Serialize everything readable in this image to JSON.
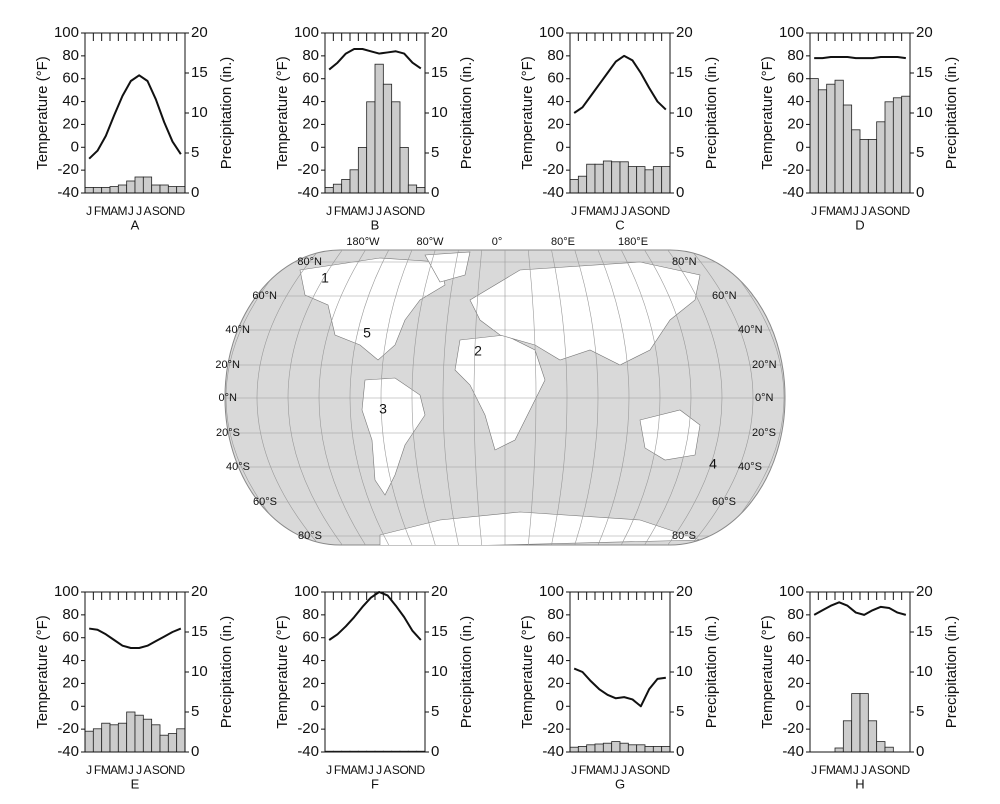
{
  "chart_data": [
    {
      "type": "climograph",
      "label": "A",
      "ylabel": "Temperature (°F)",
      "y2label": "Precipitation (in.)",
      "categories": [
        "J",
        "F",
        "M",
        "A",
        "M",
        "J",
        "J",
        "A",
        "S",
        "O",
        "N",
        "D"
      ],
      "series": [
        {
          "name": "Temperature",
          "kind": "line",
          "color": "#111111",
          "values": [
            -10,
            -3,
            10,
            28,
            45,
            58,
            63,
            58,
            42,
            22,
            5,
            -6
          ]
        },
        {
          "name": "Precipitation",
          "kind": "bar",
          "axis": "y2",
          "color": "#cccccc",
          "values": [
            0.7,
            0.7,
            0.7,
            0.8,
            1,
            1.5,
            2,
            2,
            1,
            1,
            0.8,
            0.8
          ]
        }
      ],
      "ylim": [
        -40,
        100
      ],
      "yticks": [
        -40,
        -20,
        0,
        20,
        40,
        60,
        80,
        100
      ],
      "y2lim": [
        0,
        20
      ],
      "y2ticks": [
        0,
        5,
        10,
        15,
        20
      ]
    },
    {
      "type": "climograph",
      "label": "B",
      "ylabel": "Temperature (°F)",
      "y2label": "Precipitation (in.)",
      "categories": [
        "J",
        "F",
        "M",
        "A",
        "M",
        "J",
        "J",
        "A",
        "S",
        "O",
        "N",
        "D"
      ],
      "series": [
        {
          "name": "Temperature",
          "kind": "line",
          "color": "#111111",
          "values": [
            68,
            74,
            82,
            86,
            86,
            84,
            82,
            83,
            84,
            82,
            74,
            69
          ]
        },
        {
          "name": "Precipitation",
          "kind": "bar",
          "axis": "y2",
          "color": "#cccccc",
          "values": [
            0.7,
            1.1,
            1.7,
            2.9,
            5.7,
            11.4,
            16.1,
            13.6,
            11.4,
            5.7,
            1,
            0.7
          ]
        }
      ],
      "ylim": [
        -40,
        100
      ],
      "yticks": [
        -40,
        -20,
        0,
        20,
        40,
        60,
        80,
        100
      ],
      "y2lim": [
        0,
        20
      ],
      "y2ticks": [
        0,
        5,
        10,
        15,
        20
      ]
    },
    {
      "type": "climograph",
      "label": "C",
      "ylabel": "Temperature (°F)",
      "y2label": "Precipitation (in.)",
      "categories": [
        "J",
        "F",
        "M",
        "A",
        "M",
        "J",
        "J",
        "A",
        "S",
        "O",
        "N",
        "D"
      ],
      "series": [
        {
          "name": "Temperature",
          "kind": "line",
          "color": "#111111",
          "values": [
            30,
            35,
            45,
            55,
            65,
            75,
            80,
            76,
            65,
            52,
            40,
            33
          ]
        },
        {
          "name": "Precipitation",
          "kind": "bar",
          "axis": "y2",
          "color": "#cccccc",
          "values": [
            1.7,
            2.1,
            3.6,
            3.6,
            4,
            3.9,
            3.9,
            3.3,
            3.3,
            2.9,
            3.3,
            3.3
          ]
        }
      ],
      "ylim": [
        -40,
        100
      ],
      "yticks": [
        -40,
        -20,
        0,
        20,
        40,
        60,
        80,
        100
      ],
      "y2lim": [
        0,
        20
      ],
      "y2ticks": [
        0,
        5,
        10,
        15,
        20
      ]
    },
    {
      "type": "climograph",
      "label": "D",
      "ylabel": "Temperature (°F)",
      "y2label": "Precipitation (in.)",
      "categories": [
        "J",
        "F",
        "M",
        "A",
        "M",
        "J",
        "J",
        "A",
        "S",
        "O",
        "N",
        "D"
      ],
      "series": [
        {
          "name": "Temperature",
          "kind": "line",
          "color": "#111111",
          "values": [
            78,
            78,
            79,
            79,
            79,
            78,
            78,
            78,
            79,
            79,
            79,
            78
          ]
        },
        {
          "name": "Precipitation",
          "kind": "bar",
          "axis": "y2",
          "color": "#cccccc",
          "values": [
            14.3,
            12.9,
            13.6,
            14.1,
            11,
            7.9,
            6.7,
            6.7,
            8.9,
            11.4,
            11.9,
            12.1
          ]
        }
      ],
      "ylim": [
        -40,
        100
      ],
      "yticks": [
        -40,
        -20,
        0,
        20,
        40,
        60,
        80,
        100
      ],
      "y2lim": [
        0,
        20
      ],
      "y2ticks": [
        0,
        5,
        10,
        15,
        20
      ]
    },
    {
      "type": "climograph",
      "label": "E",
      "ylabel": "Temperature (°F)",
      "y2label": "Precipitation (in.)",
      "categories": [
        "J",
        "F",
        "M",
        "A",
        "M",
        "J",
        "J",
        "A",
        "S",
        "O",
        "N",
        "D"
      ],
      "series": [
        {
          "name": "Temperature",
          "kind": "line",
          "color": "#111111",
          "values": [
            68,
            67,
            63,
            58,
            53,
            51,
            51,
            53,
            57,
            61,
            65,
            68
          ]
        },
        {
          "name": "Precipitation",
          "kind": "bar",
          "axis": "y2",
          "color": "#cccccc",
          "values": [
            2.6,
            2.9,
            3.6,
            3.4,
            3.6,
            5,
            4.6,
            4.1,
            3.4,
            2.1,
            2.3,
            2.9
          ]
        }
      ],
      "ylim": [
        -40,
        100
      ],
      "yticks": [
        -40,
        -20,
        0,
        20,
        40,
        60,
        80,
        100
      ],
      "y2lim": [
        0,
        20
      ],
      "y2ticks": [
        0,
        5,
        10,
        15,
        20
      ]
    },
    {
      "type": "climograph",
      "label": "F",
      "ylabel": "Temperature (°F)",
      "y2label": "Precipitation (in.)",
      "categories": [
        "J",
        "F",
        "M",
        "A",
        "M",
        "J",
        "J",
        "A",
        "S",
        "O",
        "N",
        "D"
      ],
      "series": [
        {
          "name": "Temperature",
          "kind": "line",
          "color": "#111111",
          "values": [
            58,
            63,
            70,
            78,
            87,
            95,
            100,
            97,
            88,
            78,
            66,
            58
          ]
        },
        {
          "name": "Precipitation",
          "kind": "bar",
          "axis": "y2",
          "color": "#cccccc",
          "values": [
            0.1,
            0.1,
            0.1,
            0.1,
            0.1,
            0.1,
            0.1,
            0.1,
            0.1,
            0.1,
            0.1,
            0.1
          ]
        }
      ],
      "ylim": [
        -40,
        100
      ],
      "yticks": [
        -40,
        -20,
        0,
        20,
        40,
        60,
        80,
        100
      ],
      "y2lim": [
        0,
        20
      ],
      "y2ticks": [
        0,
        5,
        10,
        15,
        20
      ]
    },
    {
      "type": "climograph",
      "label": "G",
      "ylabel": "Temperature (°F)",
      "y2label": "Precipitation (in.)",
      "categories": [
        "J",
        "F",
        "M",
        "A",
        "M",
        "J",
        "J",
        "A",
        "S",
        "O",
        "N",
        "D"
      ],
      "series": [
        {
          "name": "Temperature",
          "kind": "line",
          "color": "#111111",
          "values": [
            33,
            30,
            22,
            15,
            10,
            7,
            8,
            6,
            0,
            15,
            24,
            25
          ]
        },
        {
          "name": "Precipitation",
          "kind": "bar",
          "axis": "y2",
          "color": "#cccccc",
          "values": [
            0.6,
            0.7,
            0.9,
            1,
            1.1,
            1.3,
            1.1,
            0.9,
            0.9,
            0.7,
            0.7,
            0.7
          ]
        }
      ],
      "ylim": [
        -40,
        100
      ],
      "yticks": [
        -40,
        -20,
        0,
        20,
        40,
        60,
        80,
        100
      ],
      "y2lim": [
        0,
        20
      ],
      "y2ticks": [
        0,
        5,
        10,
        15,
        20
      ]
    },
    {
      "type": "climograph",
      "label": "H",
      "ylabel": "Temperature (°F)",
      "y2label": "Precipitation (in.)",
      "categories": [
        "J",
        "F",
        "M",
        "A",
        "M",
        "J",
        "J",
        "A",
        "S",
        "O",
        "N",
        "D"
      ],
      "series": [
        {
          "name": "Temperature",
          "kind": "line",
          "color": "#111111",
          "values": [
            80,
            84,
            88,
            91,
            88,
            82,
            80,
            84,
            87,
            86,
            82,
            80
          ]
        },
        {
          "name": "Precipitation",
          "kind": "bar",
          "axis": "y2",
          "color": "#cccccc",
          "values": [
            0,
            0,
            0,
            0.5,
            3.9,
            7.3,
            7.3,
            3.9,
            1.3,
            0.6,
            0,
            0
          ]
        }
      ],
      "ylim": [
        -40,
        100
      ],
      "yticks": [
        -40,
        -20,
        0,
        20,
        40,
        60,
        80,
        100
      ],
      "y2lim": [
        0,
        20
      ],
      "y2ticks": [
        0,
        5,
        10,
        15,
        20
      ]
    }
  ],
  "map": {
    "longitudes": [
      "180°W",
      "80°W",
      "0°",
      "80°E",
      "180°E"
    ],
    "latitudes_left": [
      "80°N",
      "60°N",
      "40°N",
      "20°N",
      "0°N",
      "20°S",
      "40°S",
      "60°S",
      "80°S"
    ],
    "latitudes_right": [
      "80°N",
      "60°N",
      "40°N",
      "20°N",
      "0°N",
      "20°S",
      "40°S",
      "60°S",
      "80°S"
    ],
    "sites": [
      "1",
      "2",
      "3",
      "4",
      "5"
    ]
  }
}
